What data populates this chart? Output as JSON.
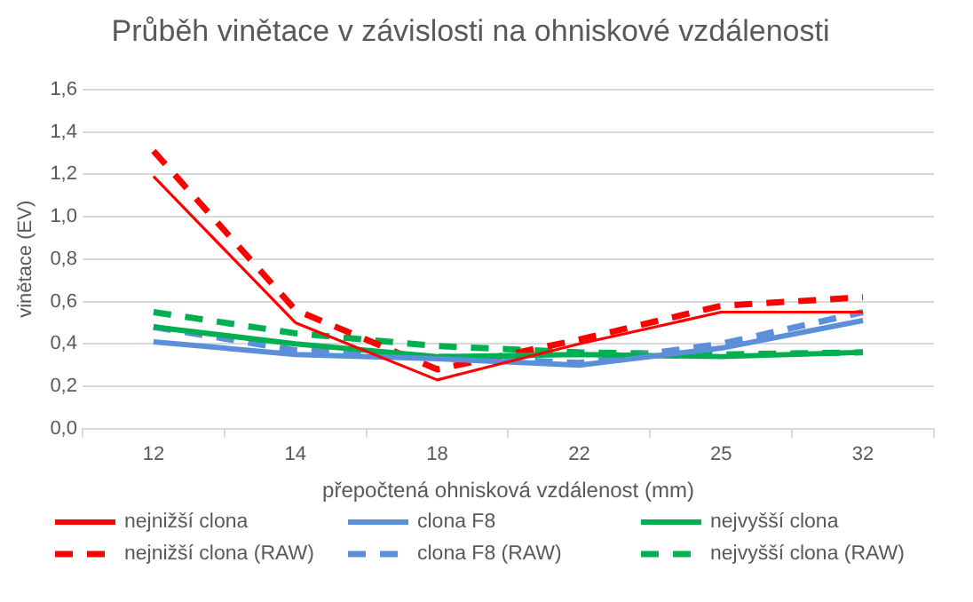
{
  "chart_data": {
    "type": "line",
    "title": "Průběh vinětace v závislosti na ohniskové vzdálenosti",
    "xlabel": "přepočtená ohnisková vzdálenost (mm)",
    "ylabel": "vinětace (EV)",
    "categories": [
      "12",
      "14",
      "18",
      "22",
      "25",
      "32"
    ],
    "ylim": [
      0,
      1.6
    ],
    "yticks": [
      {
        "value": 0,
        "label": "0,0"
      },
      {
        "value": 0.2,
        "label": "0,2"
      },
      {
        "value": 0.4,
        "label": "0,4"
      },
      {
        "value": 0.6,
        "label": "0,6"
      },
      {
        "value": 0.8,
        "label": "0,8"
      },
      {
        "value": 1,
        "label": "1,0"
      },
      {
        "value": 1.2,
        "label": "1,2"
      },
      {
        "value": 1.4,
        "label": "1,4"
      },
      {
        "value": 1.6,
        "label": "1,6"
      }
    ],
    "grid": "y",
    "legend": "bottom",
    "marker": "none",
    "series": [
      {
        "name": "nejnižší clona",
        "color": "#ff0000",
        "line_style": "solid",
        "values": [
          1.19,
          0.5,
          0.23,
          0.4,
          0.55,
          0.55
        ]
      },
      {
        "name": "clona F8",
        "color": "#5b8fd9",
        "line_style": "solid",
        "values": [
          0.41,
          0.35,
          0.33,
          0.3,
          0.38,
          0.51
        ]
      },
      {
        "name": "nejvyšší clona",
        "color": "#00b050",
        "line_style": "solid",
        "values": [
          0.48,
          0.4,
          0.34,
          0.35,
          0.34,
          0.36
        ]
      },
      {
        "name": "nejnižší clona (RAW)",
        "color": "#ff0000",
        "line_style": "dashed",
        "values": [
          1.31,
          0.56,
          0.28,
          0.42,
          0.58,
          0.62
        ]
      },
      {
        "name": "clona F8 (RAW)",
        "color": "#5b8fd9",
        "line_style": "dashed",
        "values": [
          0.48,
          0.37,
          0.34,
          0.31,
          0.4,
          0.55
        ]
      },
      {
        "name": "nejvyšší clona (RAW)",
        "color": "#00b050",
        "line_style": "dashed",
        "values": [
          0.55,
          0.45,
          0.39,
          0.36,
          0.35,
          0.36
        ]
      }
    ]
  }
}
